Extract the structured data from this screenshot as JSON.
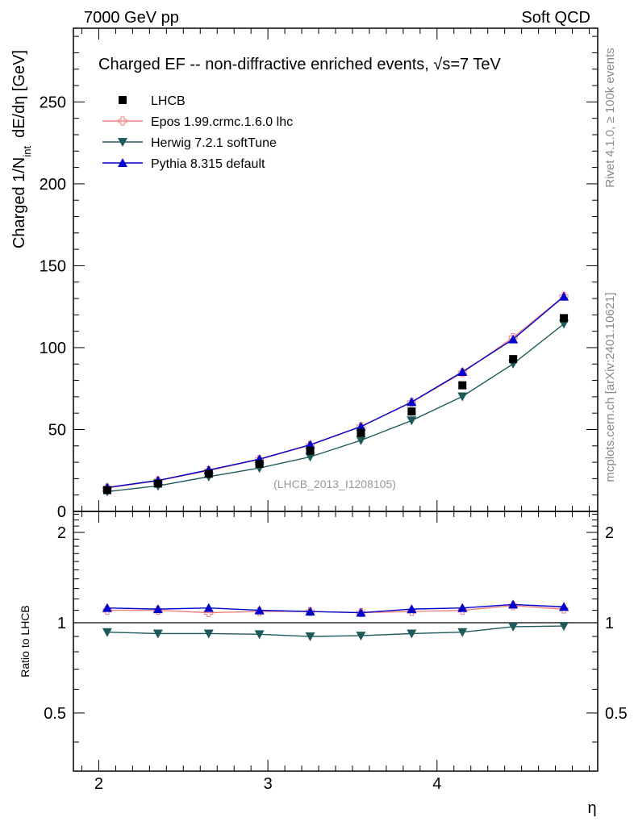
{
  "header": {
    "left": "7000 GeV pp",
    "right": "Soft QCD"
  },
  "side": {
    "rivet": "Rivet 4.1.0, ≥ 100k events",
    "mcplots": "mcplots.cern.ch [arXiv:2401.10621]"
  },
  "chart_data": {
    "type": "line",
    "title": "Charged EF -- non-diffractive enriched events, √s=7 TeV",
    "watermark": "(LHCB_2013_I1208105)",
    "xlabel": "η",
    "ylabel": "Charged 1/N_int dE/dη [GeV]",
    "ylabel_parts": {
      "main": "Charged 1/N",
      "sub": "int",
      "tail": "dE/dη [GeV]"
    },
    "ratio_ylabel": "Ratio to LHCB",
    "xlim": [
      1.85,
      4.95
    ],
    "ylim": [
      0,
      295
    ],
    "ratio_ylim": [
      0.32,
      2.35
    ],
    "x_ticks": [
      2,
      3,
      4
    ],
    "x_tick_labels": [
      "2",
      "3",
      "4"
    ],
    "y_ticks": [
      0,
      50,
      100,
      150,
      200,
      250
    ],
    "y_tick_labels": [
      "0",
      "50",
      "100",
      "150",
      "200",
      "250"
    ],
    "ratio_ticks": [
      0.5,
      1,
      2
    ],
    "ratio_tick_labels": [
      "0.5",
      "1",
      "2"
    ],
    "x": [
      2.05,
      2.35,
      2.65,
      2.95,
      3.25,
      3.55,
      3.85,
      4.15,
      4.45,
      4.75
    ],
    "series": [
      {
        "name": "LHCB",
        "color": "#000000",
        "marker": "square",
        "values": [
          13,
          17,
          23,
          29,
          37,
          48,
          61,
          77,
          93,
          118
        ]
      },
      {
        "name": "Epos 1.99.crmc.1.6.0 lhc",
        "color": "#f08080",
        "marker": "open-cross",
        "values": [
          14.3,
          18.7,
          24.9,
          31.7,
          40.4,
          51.8,
          66.6,
          84.7,
          106.2,
          131.4
        ],
        "ratio": [
          1.1,
          1.1,
          1.08,
          1.09,
          1.09,
          1.08,
          1.09,
          1.1,
          1.14,
          1.11
        ]
      },
      {
        "name": "Herwig 7.2.1 softTune",
        "color": "#1e5a5a",
        "marker": "triangle-down",
        "values": [
          12.1,
          15.6,
          21.2,
          26.5,
          33.3,
          43.4,
          55.5,
          70.2,
          90.1,
          114.5
        ],
        "ratio": [
          0.93,
          0.92,
          0.92,
          0.915,
          0.9,
          0.905,
          0.92,
          0.93,
          0.97,
          0.975
        ]
      },
      {
        "name": "Pythia 8.315 default",
        "color": "#0000cc",
        "marker": "triangle-up",
        "values": [
          14.6,
          18.9,
          25.3,
          31.9,
          40.7,
          51.8,
          66.8,
          85.2,
          105.1,
          131.2
        ],
        "ratio": [
          1.12,
          1.11,
          1.12,
          1.1,
          1.09,
          1.08,
          1.11,
          1.12,
          1.15,
          1.13
        ]
      }
    ]
  }
}
